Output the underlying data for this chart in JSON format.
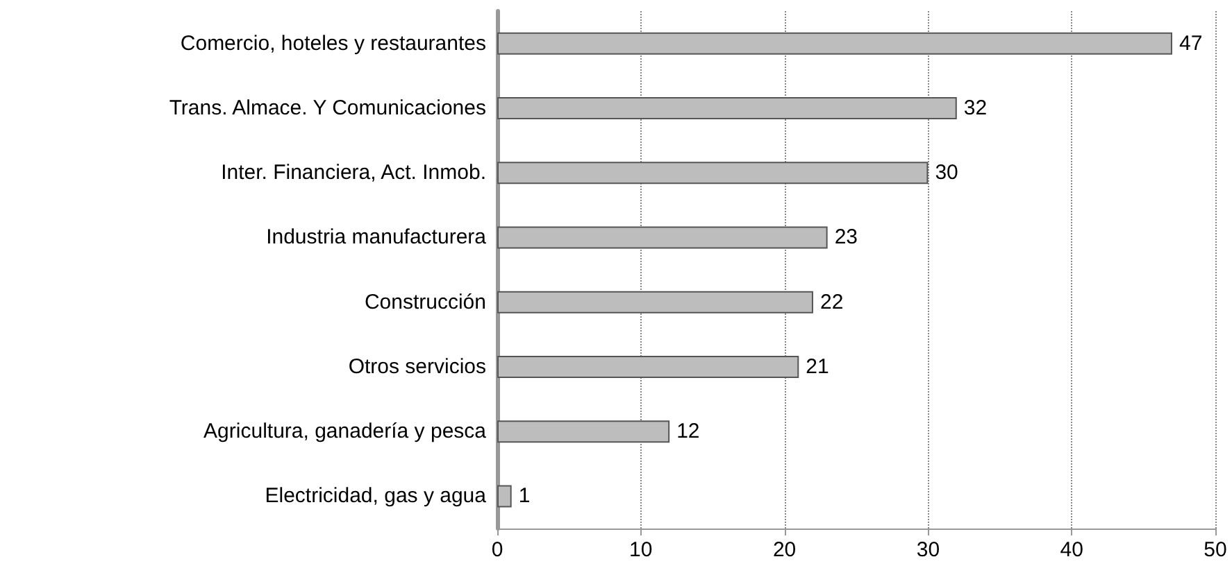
{
  "chart_data": {
    "type": "bar",
    "orientation": "horizontal",
    "categories": [
      "Comercio, hoteles y restaurantes",
      "Trans. Almace. Y Comunicaciones",
      "Inter. Financiera, Act. Inmob.",
      "Industria manufacturera",
      "Construcción",
      "Otros servicios",
      "Agricultura, ganadería y pesca",
      "Electricidad, gas y agua"
    ],
    "values": [
      47,
      32,
      30,
      23,
      22,
      21,
      12,
      1
    ],
    "color": "#bdbdbd",
    "xlim": [
      0,
      50
    ],
    "xticks": [
      0,
      10,
      20,
      30,
      40,
      50
    ],
    "grid": "x",
    "data_labels": true
  }
}
